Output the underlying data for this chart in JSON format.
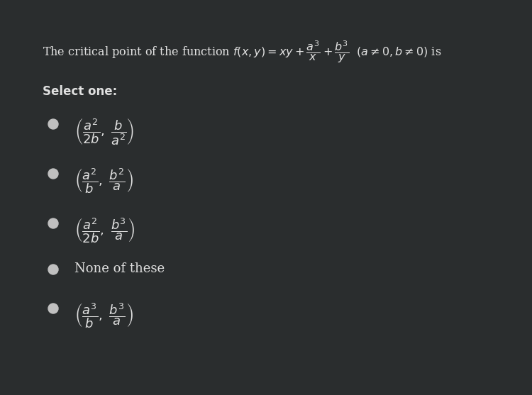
{
  "background_color": "#2a2d2e",
  "text_color": "#e0e0e0",
  "title_text": "The critical point of the function $f(x,y) = xy + \\dfrac{a^3}{x} + \\dfrac{b^3}{y}$  $(a \\neq 0, b \\neq 0)$ is",
  "select_one": "Select one:",
  "options": [
    "$\\left(\\dfrac{a^2}{2b},\\ \\dfrac{b}{a^2}\\right)$",
    "$\\left(\\dfrac{a^2}{b},\\ \\dfrac{b^2}{a}\\right)$",
    "$\\left(\\dfrac{a^2}{2b},\\ \\dfrac{b^3}{a}\\right)$",
    "None of these",
    "$\\left(\\dfrac{a^3}{b},\\ \\dfrac{b^3}{a}\\right)$"
  ],
  "title_fontsize": 11.5,
  "option_fontsize": 13,
  "select_fontsize": 12,
  "bullet_color": "#c0c0c0",
  "fig_width": 7.5,
  "fig_height": 5.57,
  "dpi": 100
}
